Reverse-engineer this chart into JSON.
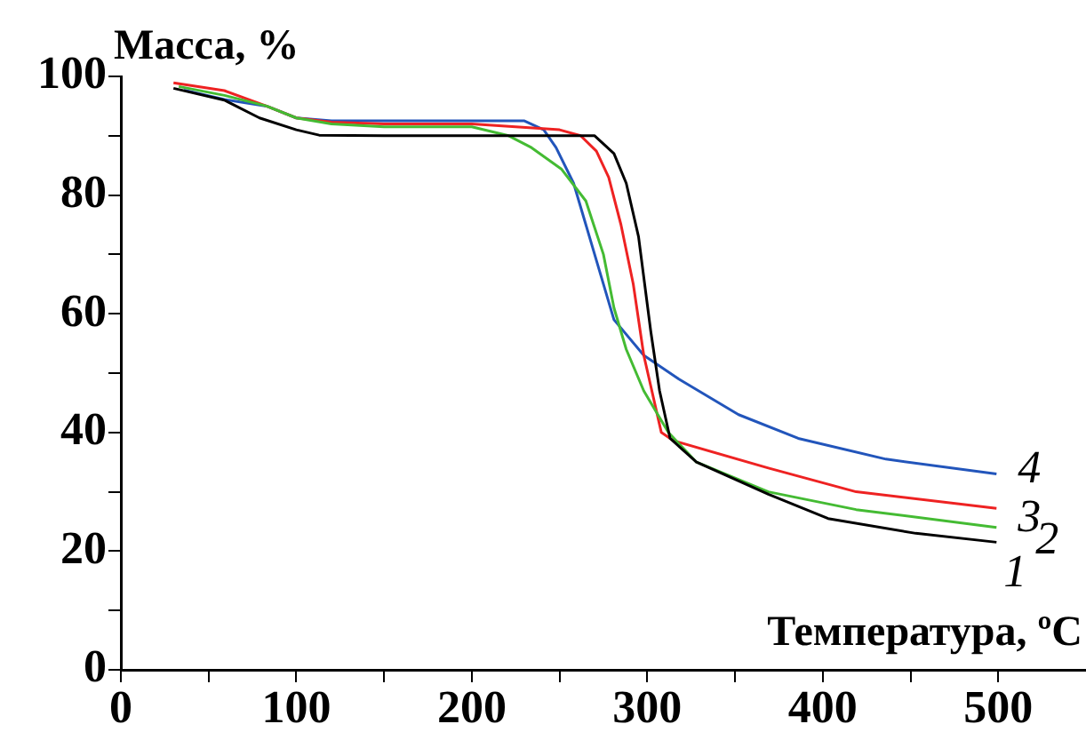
{
  "chart_data": {
    "type": "line",
    "xlabel": "Температура, ºC",
    "ylabel": "Масса, %",
    "xlim": [
      0,
      550
    ],
    "ylim": [
      0,
      100
    ],
    "xticks": [
      0,
      {
        "value": 50,
        "label": null
      },
      100,
      {
        "value": 150,
        "label": null
      },
      200,
      {
        "value": 250,
        "label": null
      },
      300,
      {
        "value": 350,
        "label": null
      },
      400,
      {
        "value": 450,
        "label": null
      },
      500
    ],
    "yticks": [
      0,
      {
        "value": 10,
        "label": null
      },
      20,
      {
        "value": 30,
        "label": null
      },
      40,
      {
        "value": 50,
        "label": null
      },
      60,
      {
        "value": 70,
        "label": null
      },
      80,
      {
        "value": 90,
        "label": null
      },
      100
    ],
    "grid": false,
    "legend": false,
    "marker": "none",
    "line_style": "solid",
    "series": [
      {
        "name": "1",
        "color": "#000000",
        "x": [
          30,
          59,
          79,
          100,
          113,
          150,
          200,
          250,
          270,
          281,
          288,
          295,
          302,
          307,
          313,
          328,
          369,
          403,
          453,
          499
        ],
        "values": [
          98,
          96,
          93,
          91,
          90.1,
          90,
          90,
          90,
          90,
          87,
          82,
          73,
          57,
          47,
          39,
          35,
          29.6,
          25.5,
          23,
          21.5
        ]
      },
      {
        "name": "2",
        "color": "#44bb33",
        "x": [
          33,
          59,
          83,
          100,
          120,
          150,
          200,
          221,
          234,
          251,
          265,
          275,
          281,
          288,
          298,
          312,
          328,
          369,
          419,
          499
        ],
        "values": [
          98.3,
          96.8,
          95,
          93,
          92,
          91.5,
          91.5,
          90,
          88,
          84.4,
          79,
          70,
          61,
          54,
          47,
          40,
          35,
          30,
          27,
          24
        ]
      },
      {
        "name": "3",
        "color": "#ee2222",
        "x": [
          30,
          59,
          83,
          100,
          120,
          150,
          200,
          250,
          262,
          271,
          278,
          285,
          292,
          298,
          308,
          315,
          369,
          419,
          499
        ],
        "values": [
          98.9,
          97.6,
          95,
          93,
          92.3,
          92,
          92,
          91,
          90,
          87.4,
          83,
          75,
          65,
          53,
          40,
          38.6,
          34,
          30,
          27.2
        ]
      },
      {
        "name": "4",
        "color": "#2255bb",
        "x": [
          36,
          59,
          83,
          100,
          120,
          150,
          200,
          230,
          241,
          248,
          258,
          265,
          271,
          281,
          298,
          318,
          352,
          386,
          436,
          499
        ],
        "values": [
          97.7,
          96.1,
          95,
          93,
          92.5,
          92.5,
          92.5,
          92.5,
          91,
          88,
          82,
          75,
          69,
          59,
          53,
          49,
          43,
          39,
          35.5,
          33
        ]
      }
    ]
  }
}
